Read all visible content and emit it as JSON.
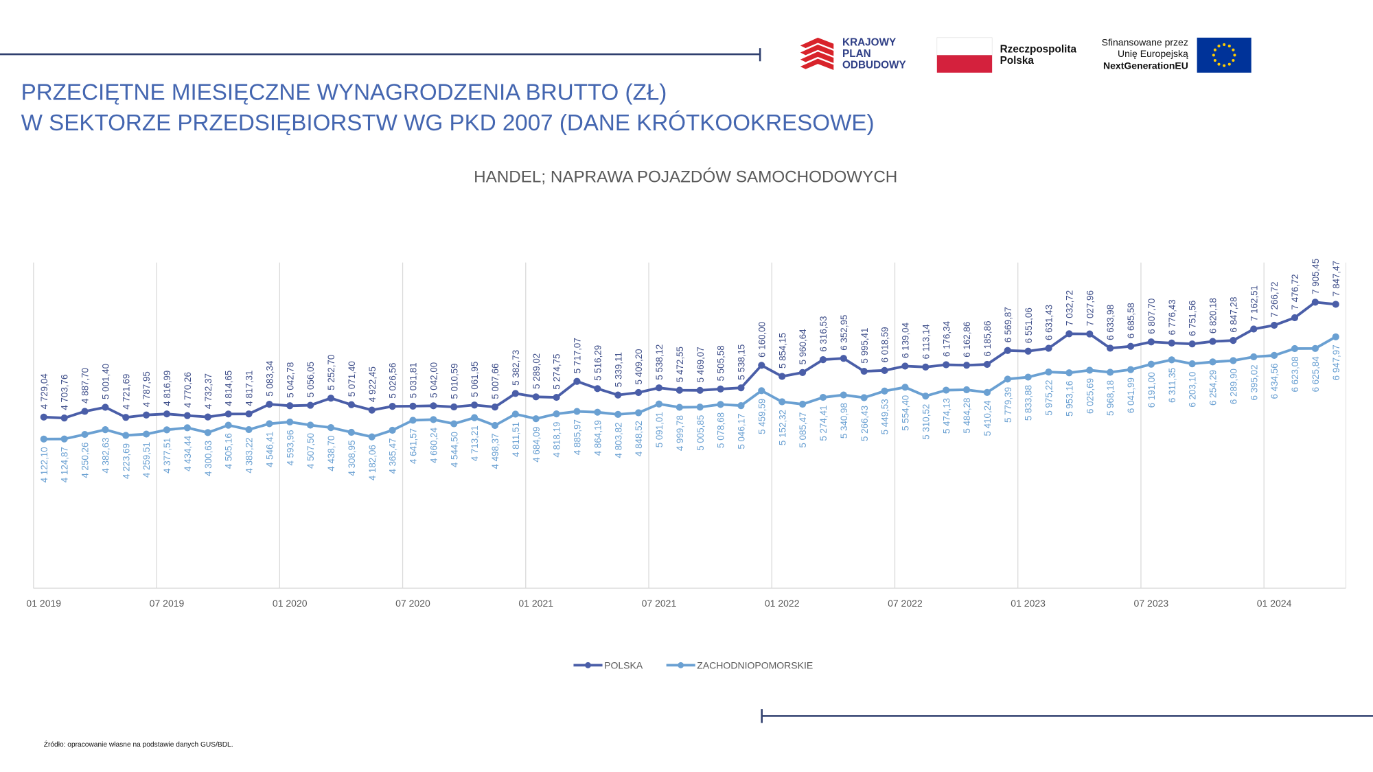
{
  "page_title": [
    "PRZECIĘTNE MIESIĘCZNE WYNAGRODZENIA BRUTTO (ZŁ)",
    "W SEKTORZE PRZEDSIĘBIORSTW WG PKD 2007 (DANE KRÓTKOOKRESOWE)"
  ],
  "logos": {
    "kpo": [
      "KRAJOWY",
      "PLAN",
      "ODBUDOWY"
    ],
    "rp": [
      "Rzeczpospolita",
      "Polska"
    ],
    "eu": [
      "Sfinansowane przez",
      "Unię Europejską",
      "NextGenerationEU"
    ]
  },
  "source": "Źródło: opracowanie własne na podstawie danych GUS/BDL.",
  "chart_data": {
    "type": "line",
    "title": "HANDEL; NAPRAWA POJAZDÓW SAMOCHODOWYCH",
    "categories": [
      "01 2019",
      null,
      null,
      null,
      null,
      null,
      "07 2019",
      null,
      null,
      null,
      null,
      null,
      "01 2020",
      null,
      null,
      null,
      null,
      null,
      "07 2020",
      null,
      null,
      null,
      null,
      null,
      "01 2021",
      null,
      null,
      null,
      null,
      null,
      "07 2021",
      null,
      null,
      null,
      null,
      null,
      "01 2022",
      null,
      null,
      null,
      null,
      null,
      "07 2022",
      null,
      null,
      null,
      null,
      null,
      "01 2023",
      null,
      null,
      null,
      null,
      null,
      "07 2023",
      null,
      null,
      null,
      null,
      null,
      "01 2024",
      null,
      null,
      null
    ],
    "ylim": [
      0,
      9000
    ],
    "grid": true,
    "legend": "bottom",
    "series": [
      {
        "name": "POLSKA",
        "color": "#4a5ea8",
        "label_position": "above",
        "values": [
          4729.04,
          4703.76,
          4887.7,
          5001.4,
          4721.69,
          4787.95,
          4816.99,
          4770.26,
          4732.37,
          4814.65,
          4817.31,
          5083.34,
          5042.78,
          5056.05,
          5252.7,
          5071.4,
          4922.45,
          5026.56,
          5031.81,
          5042.0,
          5010.59,
          5061.95,
          5007.66,
          5382.73,
          5289.02,
          5274.75,
          5717.07,
          5516.29,
          5339.11,
          5409.2,
          5538.12,
          5472.55,
          5469.07,
          5505.58,
          5538.15,
          6160.0,
          5854.15,
          5960.64,
          6316.53,
          6352.95,
          5995.41,
          6018.59,
          6139.04,
          6113.14,
          6176.34,
          6162.86,
          6185.86,
          6569.87,
          6551.06,
          6631.43,
          7032.72,
          7027.96,
          6633.98,
          6685.58,
          6807.7,
          6776.43,
          6751.56,
          6820.18,
          6847.28,
          7162.51,
          7266.72,
          7476.72,
          7905.45,
          7847.47
        ],
        "value_labels": [
          "4 729,04",
          "4 703,76",
          "4 887,70",
          "5 001,40",
          "4 721,69",
          "4 787,95",
          "4 816,99",
          "4 770,26",
          "4 732,37",
          "4 814,65",
          "4 817,31",
          "5 083,34",
          "5 042,78",
          "5 056,05",
          "5 252,70",
          "5 071,40",
          "4 922,45",
          "5 026,56",
          "5 031,81",
          "5 042,00",
          "5 010,59",
          "5 061,95",
          "5 007,66",
          "5 382,73",
          "5 289,02",
          "5 274,75",
          "5 717,07",
          "5 516,29",
          "5 339,11",
          "5 409,20",
          "5 538,12",
          "5 472,55",
          "5 469,07",
          "5 505,58",
          "5 538,15",
          "6 160,00",
          "5 854,15",
          "5 960,64",
          "6 316,53",
          "6 352,95",
          "5 995,41",
          "6 018,59",
          "6 139,04",
          "6 113,14",
          "6 176,34",
          "6 162,86",
          "6 185,86",
          "6 569,87",
          "6 551,06",
          "6 631,43",
          "7 032,72",
          "7 027,96",
          "6 633,98",
          "6 685,58",
          "6 807,70",
          "6 776,43",
          "6 751,56",
          "6 820,18",
          "6 847,28",
          "7 162,51",
          "7 266,72",
          "7 476,72",
          "7 905,45",
          "7 847,47"
        ]
      },
      {
        "name": "ZACHODNIOPOMORSKIE",
        "color": "#6aa0d2",
        "label_position": "below",
        "values": [
          4122.1,
          4124.87,
          4250.26,
          4382.63,
          4223.69,
          4259.51,
          4377.51,
          4434.44,
          4300.63,
          4505.16,
          4383.22,
          4546.41,
          4593.96,
          4507.5,
          4438.7,
          4308.95,
          4182.06,
          4365.47,
          4641.57,
          4660.24,
          4544.5,
          4713.21,
          4498.37,
          4811.51,
          4684.09,
          4818.19,
          4885.97,
          4864.19,
          4803.82,
          4848.52,
          5091.01,
          4999.78,
          5005.85,
          5078.68,
          5046.17,
          5459.59,
          5152.32,
          5085.47,
          5274.41,
          5340.98,
          5266.43,
          5449.53,
          5554.4,
          5310.52,
          5474.13,
          5484.28,
          5410.24,
          5779.39,
          5833.88,
          5975.22,
          5953.16,
          6025.69,
          5968.18,
          6041.99,
          6191.0,
          6311.35,
          6203.1,
          6254.29,
          6289.9,
          6395.02,
          6434.56,
          6623.08,
          6625.84,
          6947.97
        ],
        "value_labels": [
          "4 122,10",
          "4 124,87",
          "4 250,26",
          "4 382,63",
          "4 223,69",
          "4 259,51",
          "4 377,51",
          "4 434,44",
          "4 300,63",
          "4 505,16",
          "4 383,22",
          "4 546,41",
          "4 593,96",
          "4 507,50",
          "4 438,70",
          "4 308,95",
          "4 182,06",
          "4 365,47",
          "4 641,57",
          "4 660,24",
          "4 544,50",
          "4 713,21",
          "4 498,37",
          "4 811,51",
          "4 684,09",
          "4 818,19",
          "4 885,97",
          "4 864,19",
          "4 803,82",
          "4 848,52",
          "5 091,01",
          "4 999,78",
          "5 005,85",
          "5 078,68",
          "5 046,17",
          "5 459,59",
          "5 152,32",
          "5 085,47",
          "5 274,41",
          "5 340,98",
          "5 266,43",
          "5 449,53",
          "5 554,40",
          "5 310,52",
          "5 474,13",
          "5 484,28",
          "5 410,24",
          "5 779,39",
          "5 833,88",
          "5 975,22",
          "5 953,16",
          "6 025,69",
          "5 968,18",
          "6 041,99",
          "6 191,00",
          "6 311,35",
          "6 203,10",
          "6 254,29",
          "6 289,90",
          "6 395,02",
          "6 434,56",
          "6 623,08",
          "6 625,84",
          "6 947,97"
        ]
      }
    ]
  }
}
